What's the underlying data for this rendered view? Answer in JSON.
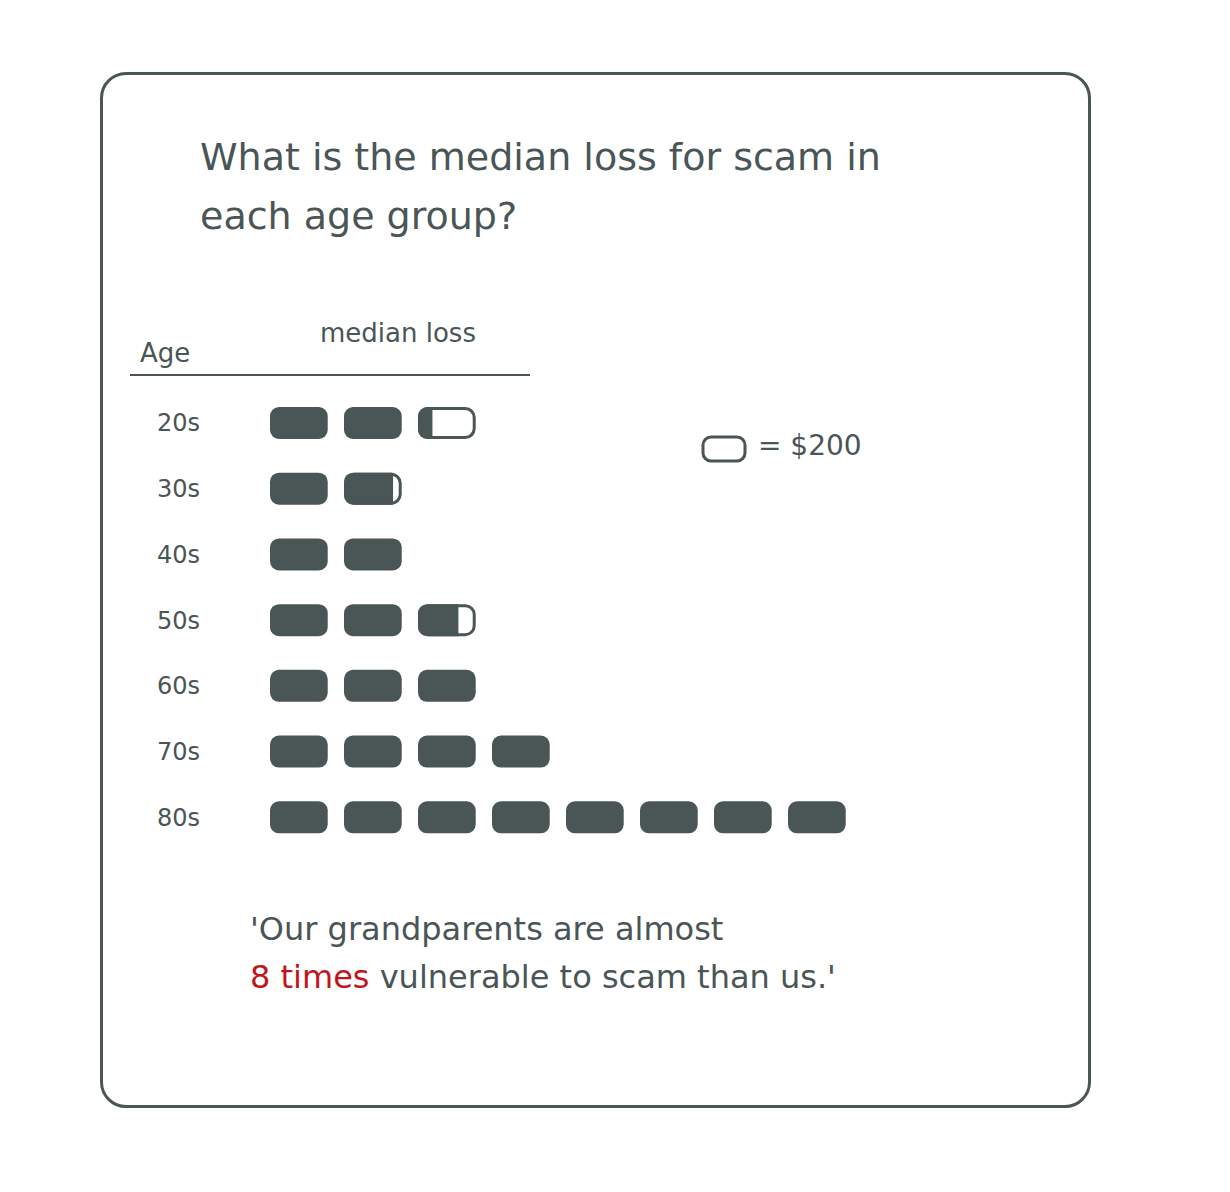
{
  "chart_data": {
    "type": "pictograph",
    "title": "What is the median loss for scam in each age group?",
    "category_label": "Age",
    "value_label": "median loss",
    "categories": [
      "20s",
      "30s",
      "40s",
      "50s",
      "60s",
      "70s",
      "80s"
    ],
    "values": [
      450,
      370,
      400,
      540,
      600,
      800,
      1600
    ],
    "color": "#4a5556",
    "icon_value": 200,
    "icon_label": "= $200",
    "xlim": [
      0,
      1600
    ],
    "tick_labels": "y",
    "annotation": {
      "line1": "'Our grandparents are almost",
      "highlight": "8 times",
      "line2": "vulnerable to scam than us.'",
      "highlight_color": "#c0161b"
    }
  }
}
